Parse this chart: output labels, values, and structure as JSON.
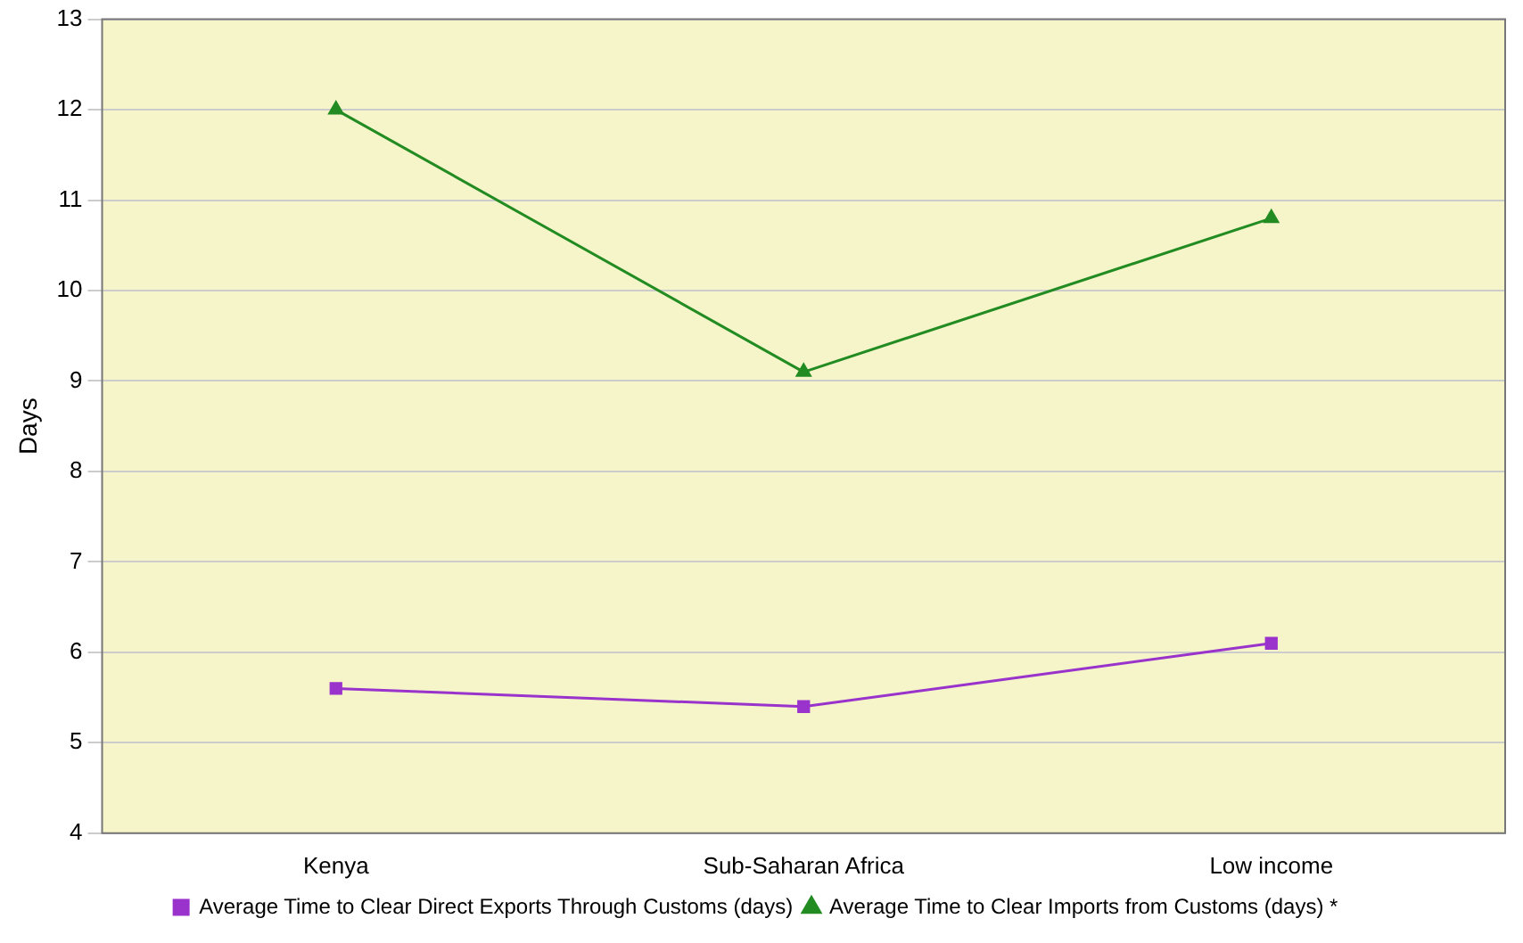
{
  "chart_data": {
    "type": "line",
    "ylabel": "Days",
    "categories": [
      "Kenya",
      "Sub-Saharan Africa",
      "Low income"
    ],
    "series": [
      {
        "name": "Average Time to Clear Direct Exports Through Customs (days)",
        "color": "#9933cc",
        "marker": "square",
        "values": [
          5.6,
          5.4,
          6.1
        ]
      },
      {
        "name": "Average Time to Clear Imports from Customs (days) *",
        "color": "#228b22",
        "marker": "triangle",
        "values": [
          12.0,
          9.1,
          10.8
        ]
      }
    ],
    "ylim": [
      4,
      13
    ],
    "yticks": [
      4,
      5,
      6,
      7,
      8,
      9,
      10,
      11,
      12,
      13
    ],
    "grid": "y",
    "legend": "bottom",
    "line_style": "solid"
  }
}
